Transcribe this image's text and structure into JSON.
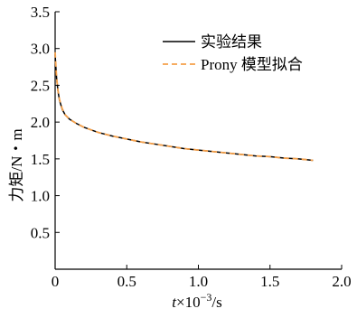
{
  "chart_data": {
    "type": "line",
    "title": "",
    "xlabel_italic": "t",
    "xlabel_rest": "×10",
    "xlabel_exp": "−3",
    "xlabel_unit": "/s",
    "ylabel": "力矩/N・m",
    "xlim": [
      0,
      2.0
    ],
    "ylim": [
      0,
      3.5
    ],
    "x_ticks": [
      "0",
      "0.5",
      "1.0",
      "1.5",
      "2.0"
    ],
    "y_ticks": [
      "0.5",
      "1.0",
      "1.5",
      "2.0",
      "2.5",
      "3.0",
      "3.5"
    ],
    "x_tick_values": [
      0,
      0.5,
      1.0,
      1.5,
      2.0
    ],
    "y_tick_values": [
      0.5,
      1.0,
      1.5,
      2.0,
      2.5,
      3.0,
      3.5
    ],
    "legend_position": "top-right",
    "series": [
      {
        "name": "实验结果",
        "color": "#000000",
        "style": "solid",
        "x": [
          0.0,
          0.005,
          0.01,
          0.02,
          0.03,
          0.05,
          0.07,
          0.1,
          0.15,
          0.2,
          0.3,
          0.4,
          0.5,
          0.6,
          0.7,
          0.8,
          0.9,
          1.0,
          1.1,
          1.2,
          1.3,
          1.4,
          1.5,
          1.6,
          1.7,
          1.8
        ],
        "y": [
          2.92,
          2.75,
          2.6,
          2.42,
          2.3,
          2.17,
          2.1,
          2.04,
          1.98,
          1.93,
          1.86,
          1.81,
          1.77,
          1.73,
          1.7,
          1.67,
          1.64,
          1.62,
          1.6,
          1.58,
          1.56,
          1.54,
          1.53,
          1.51,
          1.5,
          1.48
        ]
      },
      {
        "name": "Prony 模型拟合",
        "color": "#f5a04a",
        "style": "dashed",
        "x": [
          0.0,
          0.005,
          0.01,
          0.02,
          0.03,
          0.05,
          0.07,
          0.1,
          0.15,
          0.2,
          0.3,
          0.4,
          0.5,
          0.6,
          0.7,
          0.8,
          0.9,
          1.0,
          1.1,
          1.2,
          1.3,
          1.4,
          1.5,
          1.6,
          1.7,
          1.8
        ],
        "y": [
          2.95,
          2.77,
          2.61,
          2.43,
          2.31,
          2.18,
          2.1,
          2.04,
          1.98,
          1.93,
          1.86,
          1.81,
          1.77,
          1.73,
          1.7,
          1.67,
          1.64,
          1.62,
          1.6,
          1.58,
          1.56,
          1.54,
          1.53,
          1.51,
          1.5,
          1.48
        ]
      }
    ]
  }
}
